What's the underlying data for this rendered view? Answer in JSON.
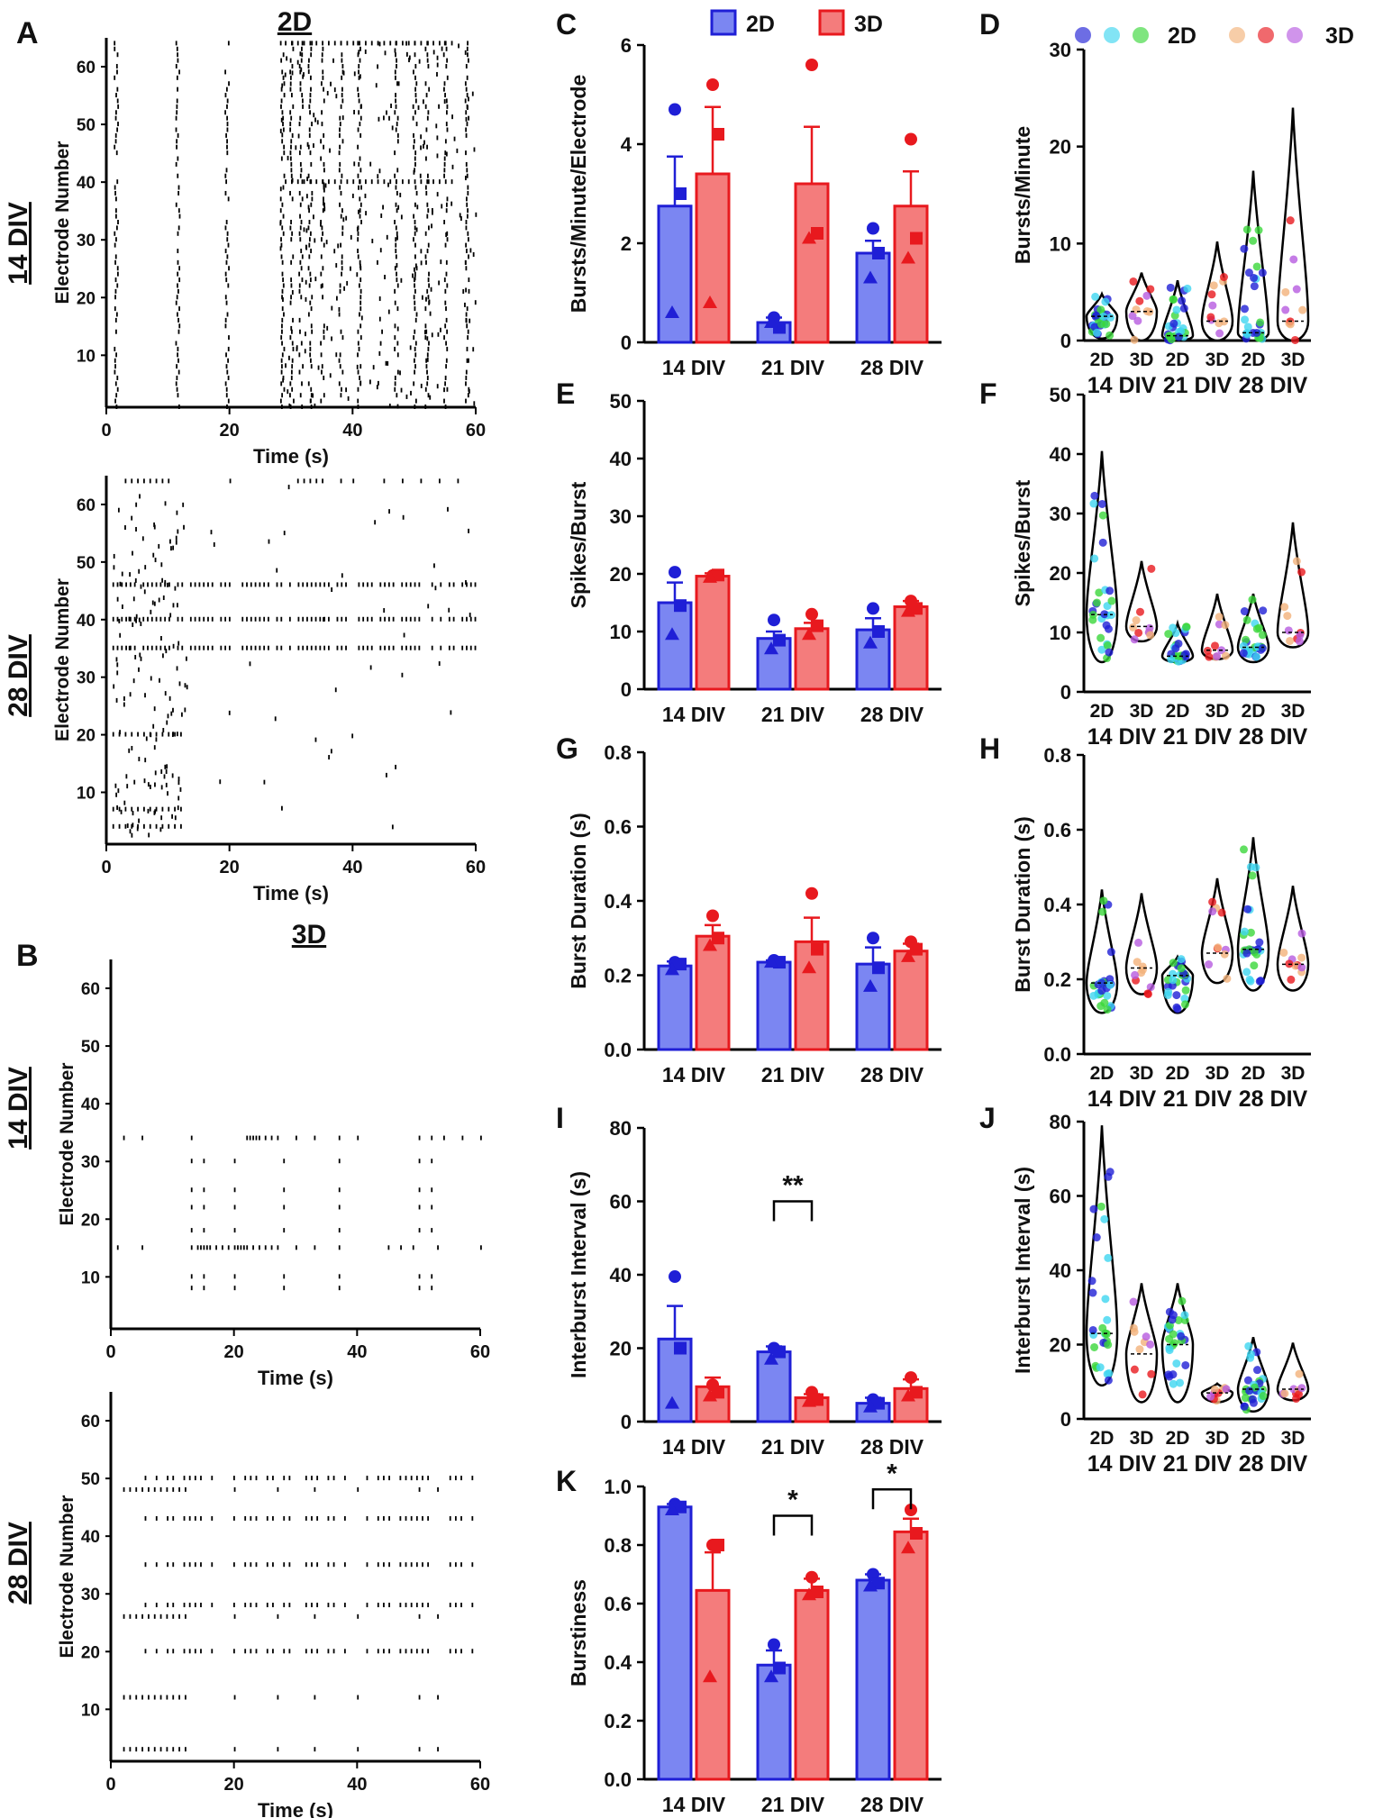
{
  "legend": {
    "g2d": "2D",
    "g3d": "3D"
  },
  "colors": {
    "blue_fill": "#7b86f2",
    "blue_edge": "#1f1fd6",
    "red_fill": "#f47c7c",
    "red_edge": "#e8191e",
    "cyan": "#3fd6f0",
    "green": "#3bd73b",
    "orange": "#f2b27a",
    "purple": "#b75be0"
  },
  "raster": {
    "A": {
      "letter": "A",
      "title": "2D",
      "row1": "14 DIV",
      "row2": "28 DIV",
      "ylabel": "Electrode Number",
      "xlabel": "Time (s)",
      "xticks": [
        "0",
        "20",
        "40",
        "60"
      ],
      "yticks": [
        "10",
        "20",
        "30",
        "40",
        "50",
        "60"
      ],
      "xlim": [
        0,
        60
      ],
      "ylim": [
        1,
        65
      ]
    },
    "B": {
      "letter": "B",
      "title": "3D",
      "row1": "14 DIV",
      "row2": "28 DIV",
      "ylabel": "Electrode Number",
      "xlabel": "Time (s)",
      "xticks": [
        "0",
        "20",
        "40",
        "60"
      ],
      "yticks": [
        "10",
        "20",
        "30",
        "40",
        "50",
        "60"
      ],
      "xlim": [
        0,
        60
      ],
      "ylim": [
        1,
        65
      ]
    }
  },
  "chart_data": [
    {
      "id": "C",
      "letter": "C",
      "type": "bar",
      "ylabel": "Bursts/Minute/Electrode",
      "ylim": [
        0,
        6
      ],
      "yticks": [
        "0",
        "2",
        "4",
        "6"
      ],
      "categories": [
        "14 DIV",
        "21 DIV",
        "28 DIV"
      ],
      "series": [
        {
          "name": "2D",
          "values": [
            2.75,
            0.4,
            1.8
          ],
          "sem": [
            1.0,
            0.1,
            0.25
          ],
          "points": [
            [
              4.7,
              3.0,
              0.6
            ],
            [
              0.5,
              0.3,
              0.4
            ],
            [
              2.3,
              1.8,
              1.3
            ]
          ]
        },
        {
          "name": "3D",
          "values": [
            3.4,
            3.2,
            2.75
          ],
          "sem": [
            1.35,
            1.15,
            0.7
          ],
          "points": [
            [
              5.2,
              4.2,
              0.8
            ],
            [
              5.6,
              2.2,
              2.1
            ],
            [
              4.1,
              2.1,
              1.7
            ]
          ]
        }
      ],
      "sig": []
    },
    {
      "id": "E",
      "letter": "E",
      "type": "bar",
      "ylabel": "Spikes/Burst",
      "ylim": [
        0,
        50
      ],
      "yticks": [
        "0",
        "10",
        "20",
        "30",
        "40",
        "50"
      ],
      "categories": [
        "14 DIV",
        "21 DIV",
        "28 DIV"
      ],
      "series": [
        {
          "name": "2D",
          "values": [
            15,
            8.8,
            10.3
          ],
          "sem": [
            3.5,
            1.2,
            2
          ],
          "points": [
            [
              20.3,
              14.5,
              9.5
            ],
            [
              12,
              8.5,
              7
            ],
            [
              14,
              10,
              8
            ]
          ]
        },
        {
          "name": "3D",
          "values": [
            19.6,
            10.5,
            14.3
          ],
          "sem": [
            0.5,
            1,
            1
          ],
          "points": [
            [
              19.7,
              19.8,
              19.4
            ],
            [
              13,
              11,
              9.5
            ],
            [
              15.3,
              14,
              13.5
            ]
          ]
        }
      ],
      "sig": []
    },
    {
      "id": "G",
      "letter": "G",
      "type": "bar",
      "ylabel": "Burst Duration (s)",
      "ylim": [
        0,
        0.8
      ],
      "yticks": [
        "0.0",
        "0.2",
        "0.4",
        "0.6",
        "0.8"
      ],
      "categories": [
        "14 DIV",
        "21 DIV",
        "28 DIV"
      ],
      "series": [
        {
          "name": "2D",
          "values": [
            0.225,
            0.235,
            0.23
          ],
          "sem": [
            0.012,
            0.005,
            0.045
          ],
          "points": [
            [
              0.235,
              0.23,
              0.215
            ],
            [
              0.24,
              0.235,
              0.235
            ],
            [
              0.3,
              0.22,
              0.17
            ]
          ]
        },
        {
          "name": "3D",
          "values": [
            0.305,
            0.29,
            0.265
          ],
          "sem": [
            0.03,
            0.065,
            0.02
          ],
          "points": [
            [
              0.36,
              0.3,
              0.28
            ],
            [
              0.42,
              0.27,
              0.22
            ],
            [
              0.29,
              0.27,
              0.25
            ]
          ]
        }
      ],
      "sig": []
    },
    {
      "id": "I",
      "letter": "I",
      "type": "bar",
      "ylabel": "Interburst  Interval  (s)",
      "ylim": [
        0,
        80
      ],
      "yticks": [
        "0",
        "20",
        "40",
        "60",
        "80"
      ],
      "categories": [
        "14 DIV",
        "21 DIV",
        "28 DIV"
      ],
      "series": [
        {
          "name": "2D",
          "values": [
            22.5,
            19,
            5
          ],
          "sem": [
            9,
            1.5,
            1.5
          ],
          "points": [
            [
              39.5,
              20,
              5
            ],
            [
              20,
              19,
              17
            ],
            [
              6,
              5,
              4
            ]
          ]
        },
        {
          "name": "3D",
          "values": [
            9.5,
            6.5,
            9
          ],
          "sem": [
            2.5,
            1,
            2.5
          ],
          "points": [
            [
              10,
              8,
              7
            ],
            [
              8,
              6,
              5.5
            ],
            [
              12,
              8,
              7
            ]
          ]
        }
      ],
      "sig": [
        {
          "group": 1,
          "label": "**",
          "y": 60
        }
      ]
    },
    {
      "id": "K",
      "letter": "K",
      "type": "bar",
      "ylabel": "Burstiness",
      "ylim": [
        0,
        1.0
      ],
      "yticks": [
        "0.0",
        "0.2",
        "0.4",
        "0.6",
        "0.8",
        "1.0"
      ],
      "categories": [
        "14 DIV",
        "21 DIV",
        "28 DIV"
      ],
      "series": [
        {
          "name": "2D",
          "values": [
            0.93,
            0.39,
            0.68
          ],
          "sem": [
            0.01,
            0.05,
            0.02
          ],
          "points": [
            [
              0.94,
              0.93,
              0.92
            ],
            [
              0.46,
              0.38,
              0.35
            ],
            [
              0.7,
              0.67,
              0.66
            ]
          ]
        },
        {
          "name": "3D",
          "values": [
            0.645,
            0.645,
            0.845
          ],
          "sem": [
            0.13,
            0.04,
            0.045
          ],
          "points": [
            [
              0.8,
              0.8,
              0.35
            ],
            [
              0.69,
              0.64,
              0.63
            ],
            [
              0.92,
              0.84,
              0.79
            ]
          ]
        }
      ],
      "sig": [
        {
          "group": 1,
          "label": "*",
          "y": 0.9
        },
        {
          "group": 2,
          "label": "*",
          "y": 0.99
        }
      ]
    },
    {
      "id": "D",
      "letter": "D",
      "type": "violin",
      "ylabel": "Bursts/Minute",
      "ylim": [
        0,
        30
      ],
      "yticks": [
        "0",
        "10",
        "20",
        "30"
      ],
      "groups": [
        "14 DIV",
        "21 DIV",
        "28 DIV"
      ],
      "sub": [
        "2D",
        "3D"
      ],
      "ranges": [
        [
          0.2,
          4.8
        ],
        [
          0,
          7
        ],
        [
          0,
          6.2
        ],
        [
          0,
          10.2
        ],
        [
          0,
          17.5
        ],
        [
          0,
          24
        ]
      ],
      "medians": [
        2.5,
        3,
        0.5,
        2,
        0.8,
        2
      ]
    },
    {
      "id": "F",
      "letter": "F",
      "type": "violin",
      "ylabel": "Spikes/Burst",
      "ylim": [
        0,
        50
      ],
      "yticks": [
        "0",
        "10",
        "20",
        "30",
        "40",
        "50"
      ],
      "groups": [
        "14 DIV",
        "21 DIV",
        "28 DIV"
      ],
      "sub": [
        "2D",
        "3D"
      ],
      "ranges": [
        [
          5,
          40.5
        ],
        [
          8.5,
          22
        ],
        [
          5,
          11.5
        ],
        [
          5.5,
          16.5
        ],
        [
          5,
          16.5
        ],
        [
          7.5,
          28.5
        ]
      ],
      "medians": [
        13,
        11,
        6,
        7,
        7.5,
        10
      ]
    },
    {
      "id": "H",
      "letter": "H",
      "type": "violin",
      "ylabel": "Burst  Duration (s)",
      "ylim": [
        0,
        0.8
      ],
      "yticks": [
        "0.0",
        "0.2",
        "0.4",
        "0.6",
        "0.8"
      ],
      "groups": [
        "14 DIV",
        "21 DIV",
        "28 DIV"
      ],
      "sub": [
        "2D",
        "3D"
      ],
      "ranges": [
        [
          0.11,
          0.44
        ],
        [
          0.16,
          0.43
        ],
        [
          0.11,
          0.26
        ],
        [
          0.19,
          0.47
        ],
        [
          0.17,
          0.58
        ],
        [
          0.17,
          0.45
        ]
      ],
      "medians": [
        0.19,
        0.23,
        0.21,
        0.27,
        0.28,
        0.24
      ]
    },
    {
      "id": "J",
      "letter": "J",
      "type": "violin",
      "ylabel": "Interburst  Interval (s)",
      "ylim": [
        0,
        80
      ],
      "yticks": [
        "0",
        "20",
        "40",
        "60",
        "80"
      ],
      "groups": [
        "14 DIV",
        "21 DIV",
        "28 DIV"
      ],
      "sub": [
        "2D",
        "3D"
      ],
      "ranges": [
        [
          9,
          79
        ],
        [
          4.5,
          36.5
        ],
        [
          4.5,
          36.5
        ],
        [
          4.5,
          9.5
        ],
        [
          2,
          22
        ],
        [
          5,
          20.5
        ]
      ],
      "medians": [
        23,
        17.5,
        20,
        7,
        8,
        8
      ]
    }
  ]
}
